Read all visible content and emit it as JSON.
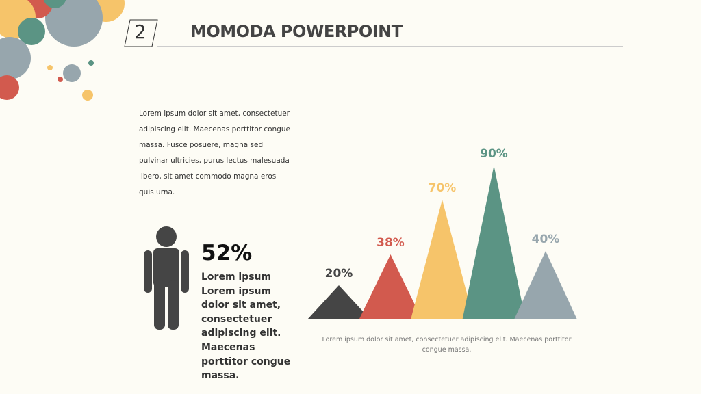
{
  "header": {
    "number": "2",
    "title": "MOMODA POWERPOINT"
  },
  "body": {
    "paragraph": "Lorem ipsum dolor sit amet, consectetuer adipiscing elit. Maecenas porttitor congue massa. Fusce posuere, magna sed pulvinar ultricies, purus lectus malesuada libero, sit amet commodo magna eros quis urna."
  },
  "stat": {
    "value": "52%",
    "description": "Lorem ipsum Lorem ipsum dolor sit amet, consectetuer adipiscing elit. Maecenas porttitor congue massa."
  },
  "chart_data": {
    "type": "triangle",
    "values": [
      20,
      38,
      70,
      90,
      40
    ],
    "value_labels": [
      "20%",
      "38%",
      "70%",
      "90%",
      "40%"
    ],
    "colors": [
      "#454545",
      "#d25a4e",
      "#f6c46a",
      "#5b9484",
      "#97a6ad"
    ],
    "caption": "Lorem ipsum dolor sit amet, consectetuer adipiscing elit. Maecenas porttitor congue massa."
  }
}
